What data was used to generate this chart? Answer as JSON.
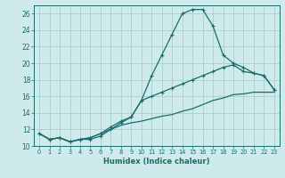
{
  "xlabel": "Humidex (Indice chaleur)",
  "ylabel": "",
  "background_color": "#ceeaea",
  "grid_color": "#aacece",
  "line_color": "#1a6b6b",
  "xlim": [
    -0.5,
    23.5
  ],
  "ylim": [
    10,
    27
  ],
  "xticks": [
    0,
    1,
    2,
    3,
    4,
    5,
    6,
    7,
    8,
    9,
    10,
    11,
    12,
    13,
    14,
    15,
    16,
    17,
    18,
    19,
    20,
    21,
    22,
    23
  ],
  "yticks": [
    10,
    12,
    14,
    16,
    18,
    20,
    22,
    24,
    26
  ],
  "curve1_x": [
    0,
    1,
    2,
    3,
    4,
    5,
    6,
    7,
    8,
    9,
    10,
    11,
    12,
    13,
    14,
    15,
    16,
    17,
    18,
    19,
    20,
    21,
    22,
    23
  ],
  "curve1_y": [
    11.5,
    10.8,
    11.0,
    10.5,
    10.8,
    10.8,
    11.2,
    12.0,
    12.8,
    13.5,
    15.5,
    18.5,
    21.0,
    23.5,
    26.0,
    26.5,
    26.5,
    24.5,
    21.0,
    20.0,
    19.5,
    18.8,
    18.5,
    16.8
  ],
  "curve2_x": [
    0,
    1,
    2,
    3,
    4,
    5,
    6,
    7,
    8,
    9,
    10,
    11,
    12,
    13,
    14,
    15,
    16,
    17,
    18,
    19,
    20,
    21,
    22,
    23
  ],
  "curve2_y": [
    11.5,
    10.8,
    11.0,
    10.5,
    10.8,
    11.0,
    11.5,
    12.3,
    13.0,
    13.5,
    15.5,
    16.0,
    16.5,
    17.0,
    17.5,
    18.0,
    18.5,
    19.0,
    19.5,
    19.8,
    19.0,
    18.8,
    18.5,
    16.8
  ],
  "curve3_x": [
    0,
    1,
    2,
    3,
    4,
    5,
    6,
    7,
    8,
    9,
    10,
    11,
    12,
    13,
    14,
    15,
    16,
    17,
    18,
    19,
    20,
    21,
    22,
    23
  ],
  "curve3_y": [
    11.5,
    10.8,
    11.0,
    10.5,
    10.8,
    11.0,
    11.5,
    12.0,
    12.5,
    12.8,
    13.0,
    13.3,
    13.6,
    13.8,
    14.2,
    14.5,
    15.0,
    15.5,
    15.8,
    16.2,
    16.3,
    16.5,
    16.5,
    16.5
  ]
}
